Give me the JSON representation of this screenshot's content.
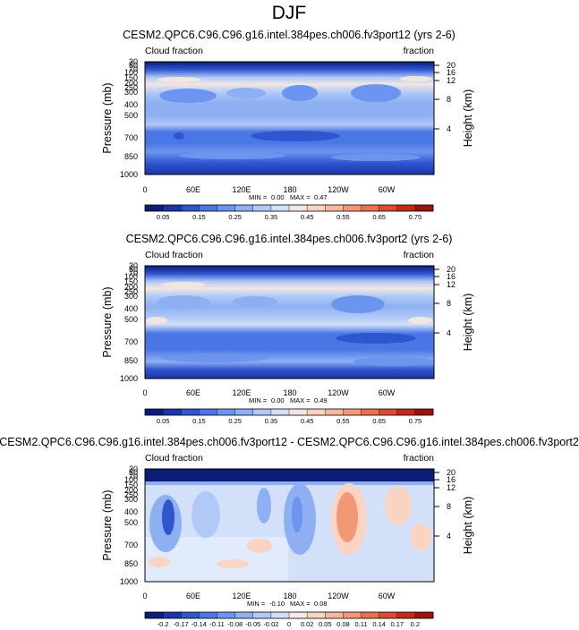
{
  "title": "DJF",
  "chart_data": [
    {
      "type": "heatmap",
      "title": "CESM2.QPC6.C96.C96.g16.intel.384pes.ch006.fv3port12 (yrs 2-6)",
      "left_label": "Cloud fraction",
      "right_label": "fraction",
      "xlabel": "",
      "ylabel": "Pressure (mb)",
      "ylabel_right": "Height (km)",
      "x_ticks": [
        "0",
        "60E",
        "120E",
        "180",
        "120W",
        "60W"
      ],
      "y_ticks": [
        "30",
        "50",
        "70",
        "100",
        "150",
        "200",
        "250",
        "300",
        "400",
        "500",
        "700",
        "850",
        "1000"
      ],
      "y_ticks_right": [
        "20",
        "16",
        "12",
        "8",
        "4"
      ],
      "stats": {
        "min_label": "MIN =",
        "min": "0.00",
        "max_label": "MAX =",
        "max": "0.47"
      },
      "colorbar_labels": [
        "0.05",
        "0.15",
        "0.25",
        "0.35",
        "0.45",
        "0.55",
        "0.65",
        "0.75"
      ],
      "colorbar_colors": [
        "#0c1d78",
        "#1b34a8",
        "#2f55cf",
        "#4a77e5",
        "#6b95ee",
        "#8eb0f3",
        "#b0c9f7",
        "#d2e0fa",
        "#f2e6e0",
        "#f9d4c2",
        "#f7b89c",
        "#f29877",
        "#ea7150",
        "#dc4a32",
        "#c22a1c",
        "#98140f"
      ]
    },
    {
      "type": "heatmap",
      "title": "CESM2.QPC6.C96.C96.g16.intel.384pes.ch006.fv3port2 (yrs 2-6)",
      "left_label": "Cloud fraction",
      "right_label": "fraction",
      "xlabel": "",
      "ylabel": "Pressure (mb)",
      "ylabel_right": "Height (km)",
      "x_ticks": [
        "0",
        "60E",
        "120E",
        "180",
        "120W",
        "60W"
      ],
      "y_ticks": [
        "30",
        "50",
        "70",
        "100",
        "150",
        "200",
        "250",
        "300",
        "400",
        "500",
        "700",
        "850",
        "1000"
      ],
      "y_ticks_right": [
        "20",
        "16",
        "12",
        "8",
        "4"
      ],
      "stats": {
        "min_label": "MIN =",
        "min": "0.00",
        "max_label": "MAX =",
        "max": "0.49"
      },
      "colorbar_labels": [
        "0.05",
        "0.15",
        "0.25",
        "0.35",
        "0.45",
        "0.55",
        "0.65",
        "0.75"
      ],
      "colorbar_colors": [
        "#0c1d78",
        "#1b34a8",
        "#2f55cf",
        "#4a77e5",
        "#6b95ee",
        "#8eb0f3",
        "#b0c9f7",
        "#d2e0fa",
        "#f2e6e0",
        "#f9d4c2",
        "#f7b89c",
        "#f29877",
        "#ea7150",
        "#dc4a32",
        "#c22a1c",
        "#98140f"
      ]
    },
    {
      "type": "heatmap",
      "title": "CESM2.QPC6.C96.C96.g16.intel.384pes.ch006.fv3port12 - CESM2.QPC6.C96.C96.g16.intel.384pes.ch006.fv3port2",
      "left_label": "Cloud fraction",
      "right_label": "fraction",
      "xlabel": "",
      "ylabel": "Pressure (mb)",
      "ylabel_right": "Height (km)",
      "x_ticks": [
        "0",
        "60E",
        "120E",
        "180",
        "120W",
        "60W"
      ],
      "y_ticks": [
        "30",
        "50",
        "70",
        "100",
        "150",
        "200",
        "250",
        "300",
        "400",
        "500",
        "700",
        "850",
        "1000"
      ],
      "y_ticks_right": [
        "20",
        "16",
        "12",
        "8",
        "4"
      ],
      "stats": {
        "min_label": "MIN =",
        "min": "-0.10",
        "max_label": "MAX =",
        "max": "0.08"
      },
      "colorbar_labels": [
        "-0.2",
        "-0.17",
        "-0.14",
        "-0.11",
        "-0.08",
        "-0.05",
        "-0.02",
        "0",
        "0.02",
        "0.05",
        "0.08",
        "0.11",
        "0.14",
        "0.17",
        "0.2"
      ],
      "colorbar_colors": [
        "#0c1d78",
        "#1b34a8",
        "#2f55cf",
        "#4a77e5",
        "#6b95ee",
        "#8eb0f3",
        "#b0c9f7",
        "#d2e0fa",
        "#f5ebe4",
        "#f9d4c2",
        "#f7b89c",
        "#f29877",
        "#ea7150",
        "#dc4a32",
        "#c22a1c",
        "#98140f"
      ]
    }
  ]
}
